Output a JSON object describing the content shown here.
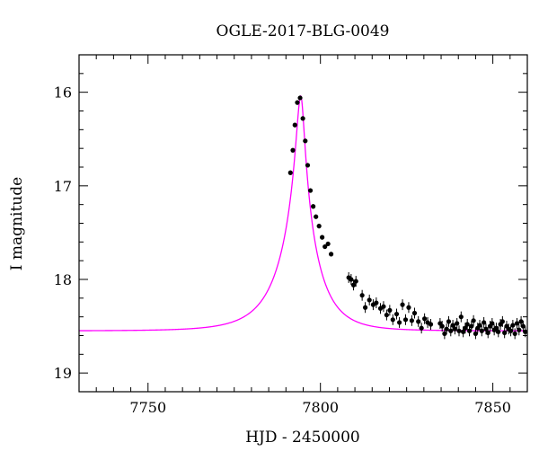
{
  "chart_data": {
    "type": "scatter",
    "title": "OGLE-2017-BLG-0049",
    "xlabel": "HJD - 2450000",
    "ylabel": "I magnitude",
    "xlim": [
      7730,
      7860
    ],
    "ylim": [
      19.2,
      15.6
    ],
    "y_inverted": true,
    "grid": false,
    "x_ticks": [
      "7750",
      "7800",
      "7850"
    ],
    "y_ticks": [
      "16",
      "17",
      "18",
      "19"
    ],
    "colors": {
      "model": "#ff00ff",
      "points": "#000000"
    },
    "model": {
      "t0": 7794.3,
      "baseline_mag": 18.55,
      "peak_mag": 16.04,
      "tE_rise": 11.5,
      "tE_fall": 9.5
    },
    "series": [
      {
        "x": [
          7791.3,
          7792.0,
          7792.6,
          7793.3,
          7794.1,
          7794.9,
          7795.6,
          7796.3,
          7797.1,
          7797.9,
          7798.7,
          7799.6,
          7800.5,
          7801.3,
          7802.2,
          7803.1,
          7808.2,
          7808.9,
          7809.6,
          7810.3,
          7812.1,
          7813.0,
          7814.2,
          7815.3,
          7816.2,
          7817.4,
          7818.3,
          7819.2,
          7820.1,
          7821.0,
          7822.1,
          7822.9,
          7823.8,
          7824.7,
          7825.6,
          7826.5,
          7827.3,
          7828.4,
          7829.3,
          7830.2,
          7831.1,
          7832.0,
          7834.7,
          7835.3,
          7836.0,
          7836.6,
          7837.2,
          7837.8,
          7838.4,
          7839.0,
          7839.6,
          7840.2,
          7840.8,
          7841.4,
          7842.0,
          7842.6,
          7843.2,
          7843.8,
          7844.4,
          7845.0,
          7845.6,
          7846.2,
          7846.8,
          7847.4,
          7848.0,
          7848.6,
          7849.2,
          7849.8,
          7850.4,
          7851.0,
          7851.6,
          7852.2,
          7852.8,
          7853.4,
          7854.0,
          7854.6,
          7855.2,
          7855.8,
          7856.4,
          7857.0,
          7857.6,
          7858.2,
          7858.8,
          7859.4
        ],
        "y": [
          16.86,
          16.62,
          16.35,
          16.11,
          16.06,
          16.28,
          16.52,
          16.78,
          17.05,
          17.22,
          17.33,
          17.43,
          17.55,
          17.65,
          17.62,
          17.73,
          17.98,
          18.0,
          18.06,
          18.02,
          18.17,
          18.3,
          18.22,
          18.27,
          18.25,
          18.31,
          18.29,
          18.38,
          18.33,
          18.43,
          18.37,
          18.46,
          18.27,
          18.43,
          18.3,
          18.44,
          18.36,
          18.45,
          18.52,
          18.42,
          18.46,
          18.48,
          18.47,
          18.5,
          18.58,
          18.53,
          18.45,
          18.55,
          18.49,
          18.53,
          18.47,
          18.55,
          18.4,
          18.56,
          18.52,
          18.48,
          18.55,
          18.5,
          18.44,
          18.58,
          18.52,
          18.49,
          18.55,
          18.46,
          18.53,
          18.57,
          18.5,
          18.47,
          18.54,
          18.52,
          18.56,
          18.48,
          18.45,
          18.57,
          18.5,
          18.53,
          18.55,
          18.49,
          18.58,
          18.47,
          18.54,
          18.45,
          18.5,
          18.56
        ]
      }
    ]
  }
}
